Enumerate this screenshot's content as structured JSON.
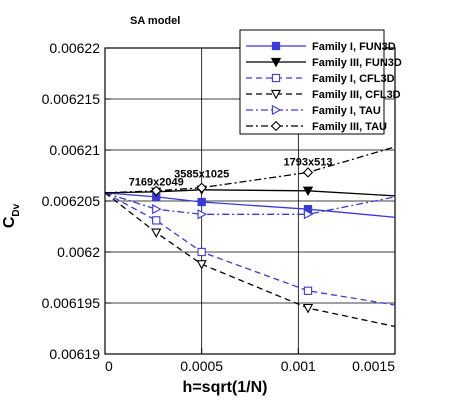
{
  "chart_data": {
    "type": "line",
    "title": "SA model",
    "xlabel": "h=sqrt(1/N)",
    "ylabel_main": "C",
    "ylabel_sub": "Dv",
    "xlim": [
      0,
      0.0015
    ],
    "ylim": [
      0.00619,
      0.00622
    ],
    "xticks": [
      "0",
      "0.0005",
      "0.001",
      "0.0015"
    ],
    "xtick_values": [
      0,
      0.0005,
      0.001,
      0.0015
    ],
    "yticks": [
      "0.00619",
      "0.006195",
      "0.0062",
      "0.006205",
      "0.00621",
      "0.006215",
      "0.00622"
    ],
    "ytick_values": [
      0.00619,
      0.006195,
      0.0062,
      0.006205,
      0.00621,
      0.006215,
      0.00622
    ],
    "grid": true,
    "legend_position": "top-right",
    "annotations": [
      {
        "text": "7169x2049",
        "x": 0.000265,
        "y": 0.0062065
      },
      {
        "text": "3585x1025",
        "x": 0.0005,
        "y": 0.0062073
      },
      {
        "text": "1793x513",
        "x": 0.00105,
        "y": 0.0062085
      }
    ],
    "series": [
      {
        "name": "Family I, FUN3D",
        "color": "#3a3adb",
        "dash": "solid",
        "marker": "square-filled",
        "x": [
          0.000265,
          0.0005,
          0.00105
        ],
        "y": [
          0.0062054,
          0.0062049,
          0.0062042
        ],
        "extrap_y0": 0.0062058,
        "extrap_xend": 0.0015,
        "extrap_yend": 0.0062034
      },
      {
        "name": "Family III, FUN3D",
        "color": "#000000",
        "dash": "solid",
        "marker": "triangle-down-filled",
        "x": [
          0.000265,
          0.0005,
          0.00105
        ],
        "y": [
          0.0062059,
          0.0062061,
          0.006206
        ],
        "extrap_y0": 0.0062058,
        "extrap_xend": 0.0015,
        "extrap_yend": 0.0062055
      },
      {
        "name": "Family I, CFL3D",
        "color": "#3a3adb",
        "dash": "dash",
        "marker": "square-open",
        "x": [
          0.000265,
          0.0005,
          0.00105
        ],
        "y": [
          0.0062031,
          0.0062,
          0.0061962
        ],
        "extrap_y0": 0.0062058,
        "extrap_xend": 0.0015,
        "extrap_yend": 0.0061948
      },
      {
        "name": "Family III, CFL3D",
        "color": "#000000",
        "dash": "dash",
        "marker": "triangle-down-open",
        "x": [
          0.000265,
          0.0005,
          0.00105
        ],
        "y": [
          0.0062019,
          0.0061988,
          0.0061945
        ],
        "extrap_y0": 0.0062058,
        "extrap_xend": 0.0015,
        "extrap_yend": 0.0061927
      },
      {
        "name": "Family I, TAU",
        "color": "#3a3adb",
        "dash": "dashdot",
        "marker": "triangle-right-open",
        "x": [
          0.000265,
          0.0005,
          0.00105
        ],
        "y": [
          0.0062042,
          0.0062037,
          0.0062037
        ],
        "extrap_y0": 0.0062058,
        "extrap_xend": 0.0015,
        "extrap_yend": 0.0062054
      },
      {
        "name": "Family III, TAU",
        "color": "#000000",
        "dash": "dashdot",
        "marker": "diamond-open",
        "x": [
          0.000265,
          0.0005,
          0.00105
        ],
        "y": [
          0.006206,
          0.0062063,
          0.0062078
        ],
        "extrap_y0": 0.0062058,
        "extrap_xend": 0.0015,
        "extrap_yend": 0.0062103
      }
    ]
  }
}
